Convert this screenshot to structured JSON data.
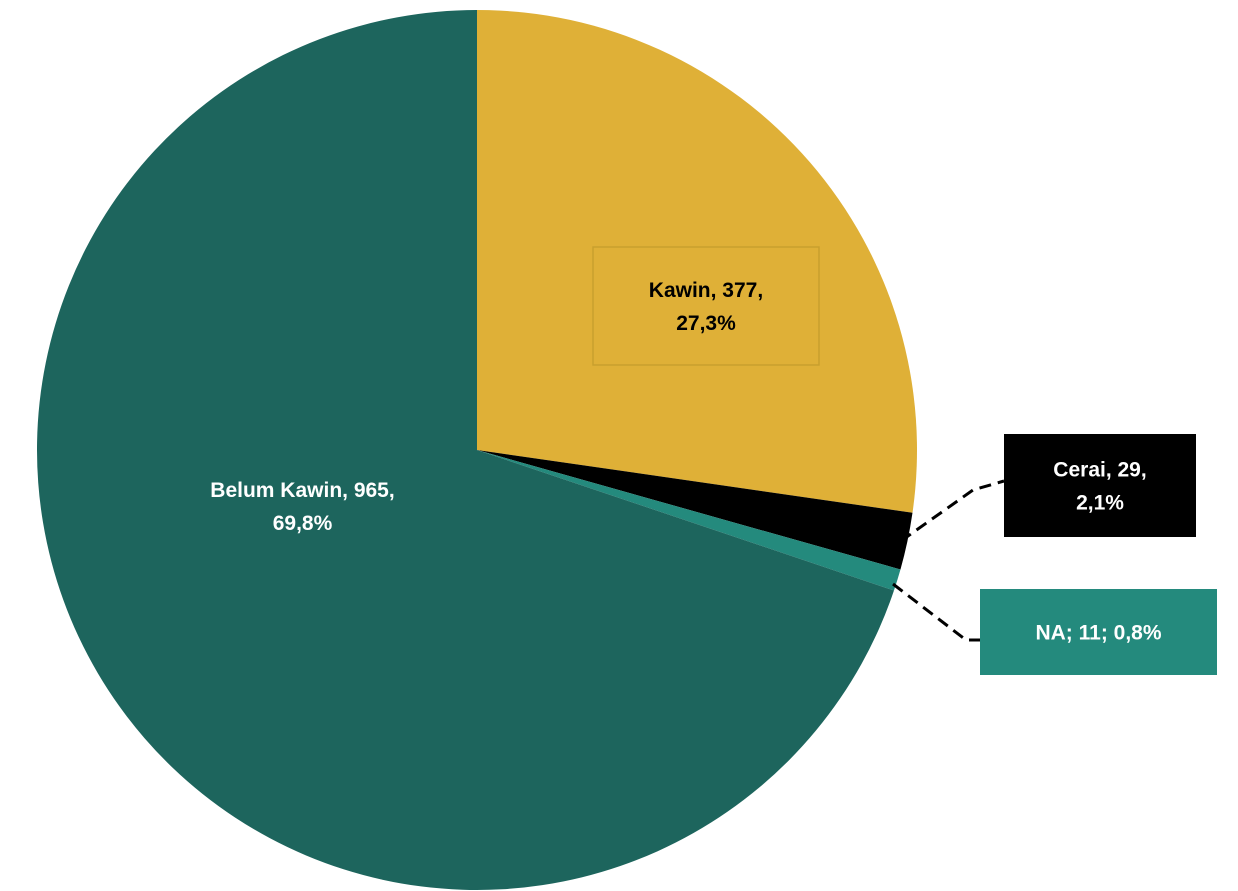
{
  "chart_data": {
    "type": "pie",
    "title": "",
    "slices": [
      {
        "label": "Kawin, 377,\n27,3%",
        "name": "Kawin",
        "value": 377,
        "percent": 27.3,
        "color": "#DFB037",
        "label_bg": "#DFB037",
        "label_color": "#000000",
        "leader": false
      },
      {
        "label": "Cerai, 29,\n2,1%",
        "name": "Cerai",
        "value": 29,
        "percent": 2.1,
        "color": "#000000",
        "label_bg": "#000000",
        "label_color": "#FFFFFF",
        "leader": true
      },
      {
        "label": "NA; 11; 0,8%",
        "name": "NA",
        "value": 11,
        "percent": 0.8,
        "color": "#248A7D",
        "label_bg": "#248A7D",
        "label_color": "#FFFFFF",
        "leader": true
      },
      {
        "label": "Belum Kawin, 965,\n69,8%",
        "name": "Belum Kawin",
        "value": 965,
        "percent": 69.8,
        "color": "#1D655D",
        "label_bg": "#1D655D",
        "label_color": "#FFFFFF",
        "leader": false
      }
    ],
    "start_angle_deg": 0,
    "direction": "clockwise",
    "legend": "none"
  }
}
